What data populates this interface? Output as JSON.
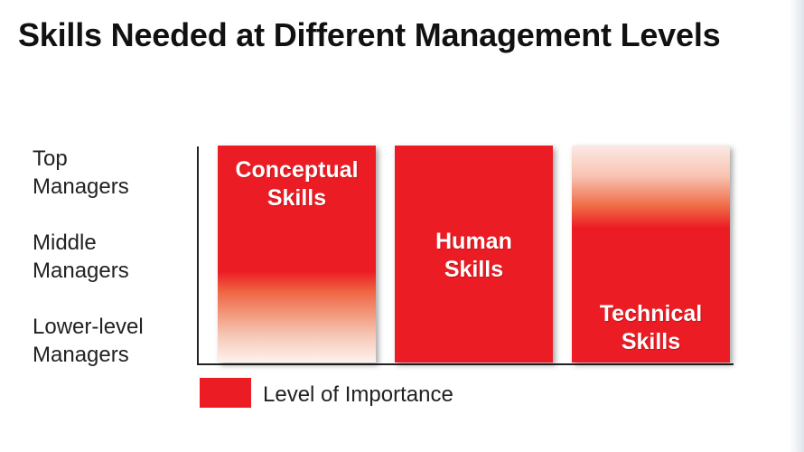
{
  "title": "Skills Needed at Different Management Levels",
  "rows": [
    {
      "line1": "Top",
      "line2": "Managers"
    },
    {
      "line1": "Middle",
      "line2": "Managers"
    },
    {
      "line1": "Lower-level",
      "line2": "Managers"
    }
  ],
  "columns": [
    {
      "line1": "Conceptual",
      "line2": "Skills"
    },
    {
      "line1": "Human",
      "line2": "Skills"
    },
    {
      "line1": "Technical",
      "line2": "Skills"
    }
  ],
  "legend": {
    "label": "Level of Importance",
    "color": "#ec1c24"
  },
  "colors": {
    "accent_red": "#ec1c24",
    "fade": "#fdf2ee"
  }
}
